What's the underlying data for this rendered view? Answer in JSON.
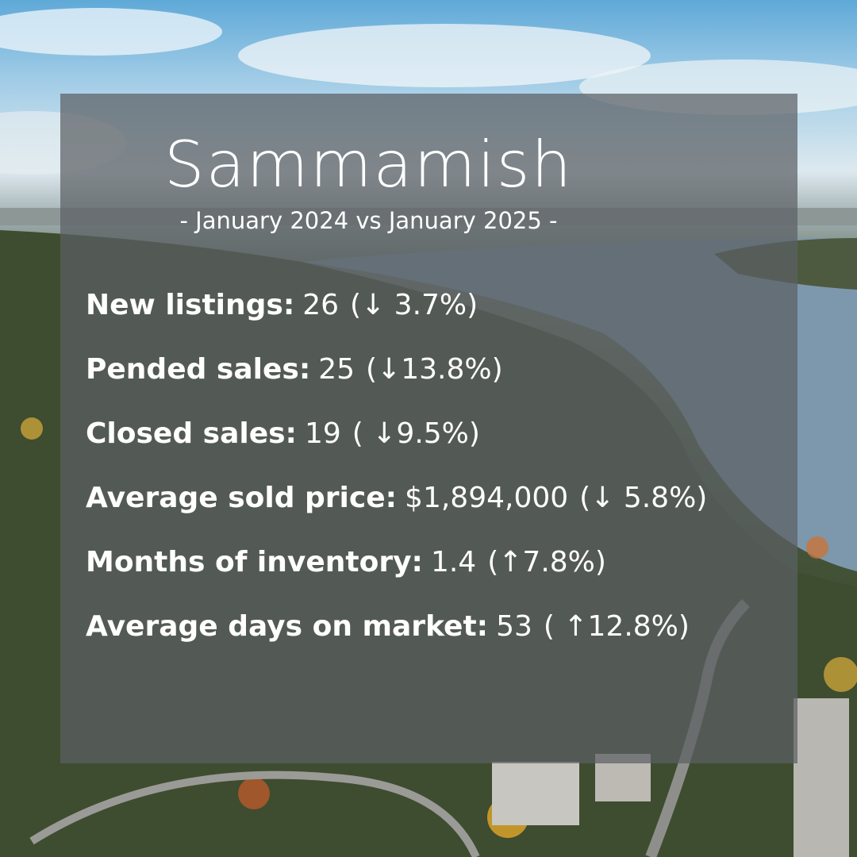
{
  "colors": {
    "panel_overlay": "#5c6064",
    "text": "#ffffff",
    "sky": "#7ab8de",
    "water": "#7d98ad",
    "forest": "#3e4c30"
  },
  "header": {
    "title": "Sammamish",
    "subtitle": "- January 2024 vs January 2025 -"
  },
  "stats": [
    {
      "label": "New listings:",
      "value": "26",
      "change": "(↓ 3.7%)"
    },
    {
      "label": "Pended sales:",
      "value": "25",
      "change": "(↓13.8%)"
    },
    {
      "label": "Closed sales:",
      "value": "19",
      "change": "( ↓9.5%)"
    },
    {
      "label": "Average sold price:",
      "value": "$1,894,000",
      "change": "(↓ 5.8%)"
    },
    {
      "label": "Months of inventory:",
      "value": "1.4",
      "change": "(↑7.8%)"
    },
    {
      "label": "Average days on market:",
      "value": "53",
      "change": "( ↑12.8%)"
    }
  ]
}
